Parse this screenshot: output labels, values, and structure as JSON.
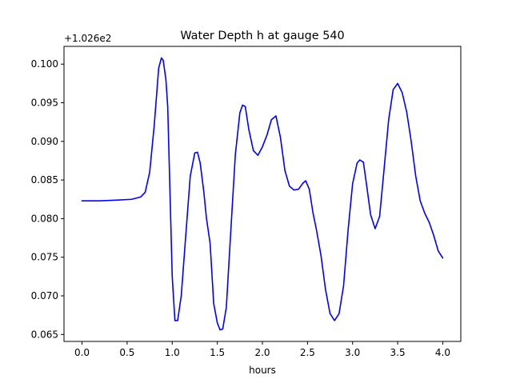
{
  "chart_data": {
    "type": "line",
    "title": "Water Depth h at gauge 540",
    "xlabel": "hours",
    "ylabel": "",
    "offset_label": "+1.026e2",
    "xlim": [
      -0.2,
      4.2
    ],
    "ylim": [
      0.0641,
      0.1023
    ],
    "xticks": [
      0.0,
      0.5,
      1.0,
      1.5,
      2.0,
      2.5,
      3.0,
      3.5,
      4.0
    ],
    "xtick_labels": [
      "0.0",
      "0.5",
      "1.0",
      "1.5",
      "2.0",
      "2.5",
      "3.0",
      "3.5",
      "4.0"
    ],
    "yticks": [
      0.065,
      0.07,
      0.075,
      0.08,
      0.085,
      0.09,
      0.095,
      0.1
    ],
    "ytick_labels": [
      "0.065",
      "0.070",
      "0.075",
      "0.080",
      "0.085",
      "0.090",
      "0.095",
      "0.100"
    ],
    "grid": false,
    "series": [
      {
        "color": "#0000ff",
        "x": [
          0.0,
          0.2,
          0.4,
          0.55,
          0.65,
          0.7,
          0.75,
          0.8,
          0.85,
          0.88,
          0.9,
          0.93,
          0.95,
          1.0,
          1.03,
          1.06,
          1.1,
          1.15,
          1.2,
          1.25,
          1.28,
          1.31,
          1.35,
          1.38,
          1.42,
          1.46,
          1.5,
          1.53,
          1.56,
          1.6,
          1.65,
          1.7,
          1.75,
          1.78,
          1.81,
          1.85,
          1.9,
          1.95,
          2.0,
          2.05,
          2.1,
          2.15,
          2.2,
          2.25,
          2.3,
          2.35,
          2.4,
          2.45,
          2.48,
          2.52,
          2.56,
          2.6,
          2.65,
          2.7,
          2.75,
          2.8,
          2.85,
          2.9,
          2.95,
          3.0,
          3.05,
          3.08,
          3.12,
          3.15,
          3.2,
          3.25,
          3.3,
          3.35,
          3.4,
          3.45,
          3.5,
          3.55,
          3.6,
          3.65,
          3.7,
          3.75,
          3.8,
          3.85,
          3.9,
          3.95,
          4.0
        ],
        "y": [
          0.0823,
          0.0823,
          0.0824,
          0.0825,
          0.0828,
          0.0834,
          0.086,
          0.092,
          0.0995,
          0.1008,
          0.1005,
          0.098,
          0.0945,
          0.0725,
          0.0668,
          0.0668,
          0.07,
          0.0778,
          0.0855,
          0.0885,
          0.0886,
          0.0872,
          0.0835,
          0.08,
          0.0768,
          0.069,
          0.0665,
          0.0656,
          0.0657,
          0.0685,
          0.0785,
          0.0883,
          0.0937,
          0.0947,
          0.0945,
          0.0915,
          0.0888,
          0.0882,
          0.0893,
          0.0908,
          0.0928,
          0.0933,
          0.0905,
          0.0862,
          0.0842,
          0.0837,
          0.0838,
          0.0846,
          0.0849,
          0.0838,
          0.0808,
          0.0785,
          0.0752,
          0.0708,
          0.0677,
          0.0668,
          0.0677,
          0.0713,
          0.0785,
          0.0845,
          0.0872,
          0.0876,
          0.0873,
          0.0848,
          0.0805,
          0.0787,
          0.0803,
          0.0865,
          0.0928,
          0.0967,
          0.0975,
          0.0963,
          0.0938,
          0.09,
          0.0855,
          0.0823,
          0.0807,
          0.0795,
          0.0778,
          0.0758,
          0.0749
        ]
      }
    ]
  }
}
